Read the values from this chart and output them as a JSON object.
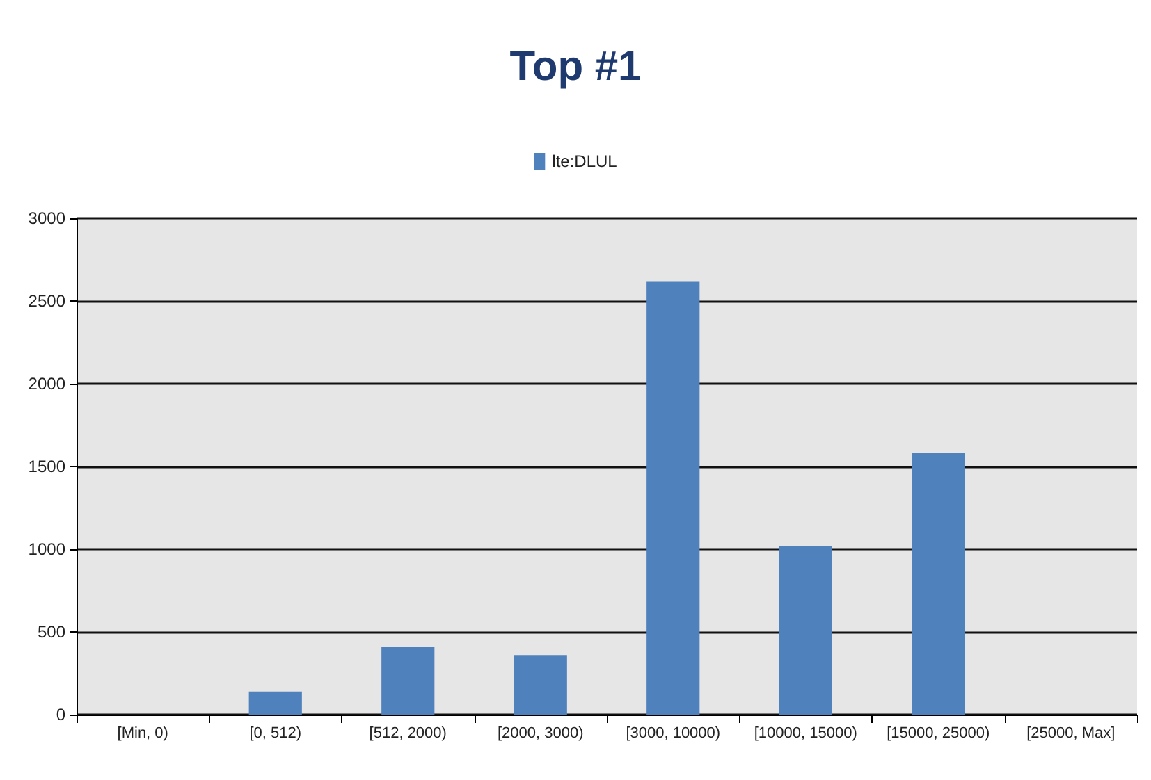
{
  "chart_data": {
    "type": "bar",
    "title": "Top #1",
    "categories": [
      "[Min, 0)",
      "[0, 512)",
      "[512, 2000)",
      "[2000, 3000)",
      "[3000, 10000)",
      "[10000, 15000)",
      "[15000, 25000)",
      "[25000, Max]"
    ],
    "series": [
      {
        "name": "lte:DLUL",
        "color": "#4f81bd",
        "values": [
          0,
          140,
          410,
          360,
          2620,
          1020,
          1580,
          0
        ]
      }
    ],
    "ylim": [
      0,
      3000
    ],
    "yticks": [
      0,
      500,
      1000,
      1500,
      2000,
      2500,
      3000
    ],
    "grid": true,
    "legend": "top"
  }
}
